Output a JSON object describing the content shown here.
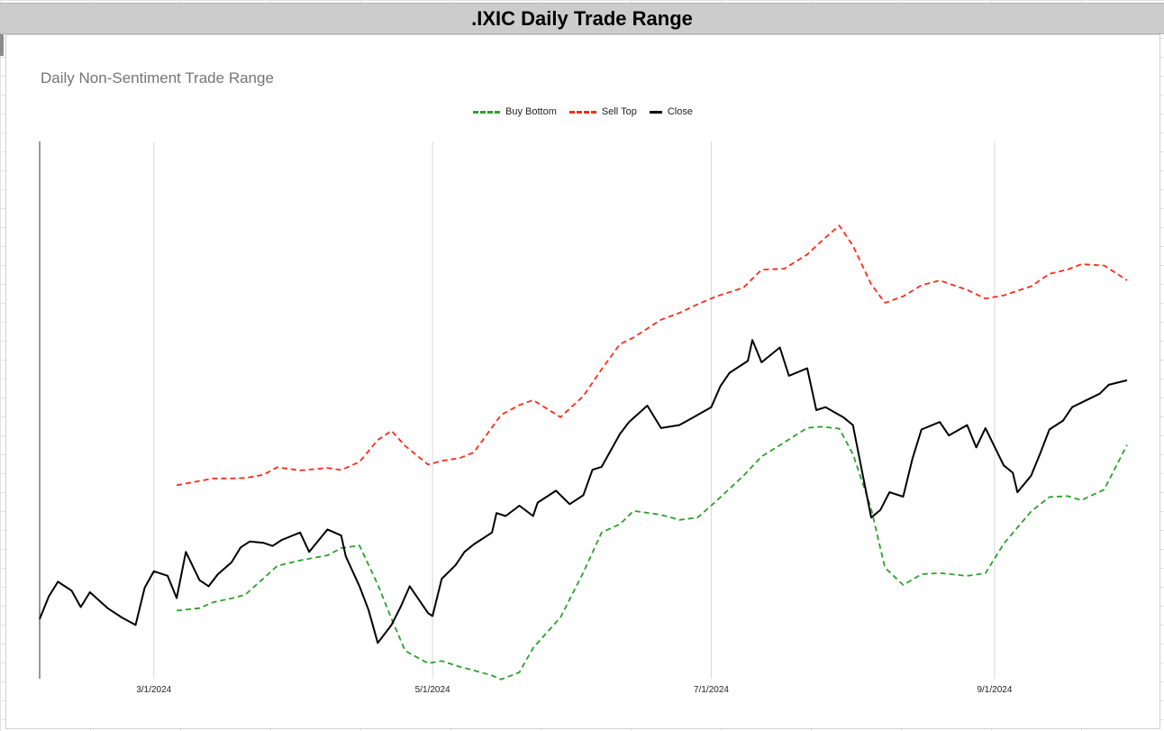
{
  "header": {
    "title": ".IXIC Daily Trade Range"
  },
  "colors": {
    "buy": "#2ca02c",
    "sell": "#ff2a1a",
    "close": "#000000"
  },
  "chart_data": {
    "type": "line",
    "title": "Daily Non-Sentiment Trade Range",
    "xlabel": "",
    "ylabel": "",
    "legend_position": "top-center",
    "grid": "vertical",
    "x_range": [
      "2024-02-05",
      "2024-09-30"
    ],
    "y_range": [
      15200,
      18800
    ],
    "x_ticks": [
      "3/1/2024",
      "5/1/2024",
      "7/1/2024",
      "9/1/2024"
    ],
    "x_tick_dates": [
      "2024-03-01",
      "2024-05-01",
      "2024-07-01",
      "2024-09-01"
    ],
    "series": [
      {
        "name": "Buy Bottom",
        "style": "dashed",
        "color": "#2ca02c",
        "points": [
          [
            "2024-03-06",
            15656
          ],
          [
            "2024-03-11",
            15673
          ],
          [
            "2024-03-14",
            15713
          ],
          [
            "2024-03-18",
            15738
          ],
          [
            "2024-03-21",
            15763
          ],
          [
            "2024-03-25",
            15872
          ],
          [
            "2024-03-28",
            15956
          ],
          [
            "2024-04-02",
            15993
          ],
          [
            "2024-04-08",
            16027
          ],
          [
            "2024-04-11",
            16075
          ],
          [
            "2024-04-15",
            16093
          ],
          [
            "2024-04-19",
            15831
          ],
          [
            "2024-04-22",
            15603
          ],
          [
            "2024-04-25",
            15387
          ],
          [
            "2024-04-30",
            15303
          ],
          [
            "2024-05-03",
            15319
          ],
          [
            "2024-05-07",
            15279
          ],
          [
            "2024-05-10",
            15256
          ],
          [
            "2024-05-14",
            15222
          ],
          [
            "2024-05-16",
            15195
          ],
          [
            "2024-05-20",
            15243
          ],
          [
            "2024-05-23",
            15406
          ],
          [
            "2024-05-29",
            15611
          ],
          [
            "2024-06-03",
            15912
          ],
          [
            "2024-06-07",
            16180
          ],
          [
            "2024-06-11",
            16236
          ],
          [
            "2024-06-14",
            16325
          ],
          [
            "2024-06-20",
            16299
          ],
          [
            "2024-06-24",
            16264
          ],
          [
            "2024-06-28",
            16280
          ],
          [
            "2024-07-02",
            16388
          ],
          [
            "2024-07-08",
            16559
          ],
          [
            "2024-07-12",
            16689
          ],
          [
            "2024-07-17",
            16784
          ],
          [
            "2024-07-22",
            16881
          ],
          [
            "2024-07-25",
            16889
          ],
          [
            "2024-07-29",
            16876
          ],
          [
            "2024-08-01",
            16706
          ],
          [
            "2024-08-05",
            16339
          ],
          [
            "2024-08-08",
            15945
          ],
          [
            "2024-08-12",
            15828
          ],
          [
            "2024-08-16",
            15900
          ],
          [
            "2024-08-20",
            15908
          ],
          [
            "2024-08-26",
            15889
          ],
          [
            "2024-08-30",
            15907
          ],
          [
            "2024-09-03",
            16104
          ],
          [
            "2024-09-09",
            16321
          ],
          [
            "2024-09-13",
            16418
          ],
          [
            "2024-09-17",
            16424
          ],
          [
            "2024-09-20",
            16396
          ],
          [
            "2024-09-25",
            16468
          ],
          [
            "2024-09-30",
            16766
          ]
        ]
      },
      {
        "name": "Sell Top",
        "style": "dashed",
        "color": "#ff2a1a",
        "points": [
          [
            "2024-03-06",
            16497
          ],
          [
            "2024-03-11",
            16525
          ],
          [
            "2024-03-14",
            16542
          ],
          [
            "2024-03-18",
            16542
          ],
          [
            "2024-03-21",
            16545
          ],
          [
            "2024-03-25",
            16567
          ],
          [
            "2024-03-28",
            16617
          ],
          [
            "2024-04-02",
            16596
          ],
          [
            "2024-04-08",
            16613
          ],
          [
            "2024-04-11",
            16599
          ],
          [
            "2024-04-15",
            16653
          ],
          [
            "2024-04-19",
            16799
          ],
          [
            "2024-04-22",
            16862
          ],
          [
            "2024-04-25",
            16760
          ],
          [
            "2024-04-30",
            16635
          ],
          [
            "2024-05-03",
            16660
          ],
          [
            "2024-05-07",
            16679
          ],
          [
            "2024-05-10",
            16716
          ],
          [
            "2024-05-14",
            16884
          ],
          [
            "2024-05-16",
            16968
          ],
          [
            "2024-05-20",
            17034
          ],
          [
            "2024-05-23",
            17067
          ],
          [
            "2024-05-29",
            16953
          ],
          [
            "2024-06-03",
            17094
          ],
          [
            "2024-06-07",
            17274
          ],
          [
            "2024-06-11",
            17442
          ],
          [
            "2024-06-14",
            17487
          ],
          [
            "2024-06-20",
            17606
          ],
          [
            "2024-06-24",
            17651
          ],
          [
            "2024-06-28",
            17709
          ],
          [
            "2024-07-02",
            17761
          ],
          [
            "2024-07-08",
            17820
          ],
          [
            "2024-07-12",
            17941
          ],
          [
            "2024-07-17",
            17948
          ],
          [
            "2024-07-22",
            18043
          ],
          [
            "2024-07-25",
            18129
          ],
          [
            "2024-07-29",
            18237
          ],
          [
            "2024-08-01",
            18102
          ],
          [
            "2024-08-05",
            17843
          ],
          [
            "2024-08-08",
            17719
          ],
          [
            "2024-08-12",
            17762
          ],
          [
            "2024-08-16",
            17837
          ],
          [
            "2024-08-20",
            17869
          ],
          [
            "2024-08-26",
            17805
          ],
          [
            "2024-08-30",
            17747
          ],
          [
            "2024-09-03",
            17769
          ],
          [
            "2024-09-09",
            17830
          ],
          [
            "2024-09-13",
            17913
          ],
          [
            "2024-09-17",
            17942
          ],
          [
            "2024-09-20",
            17978
          ],
          [
            "2024-09-25",
            17969
          ],
          [
            "2024-09-30",
            17870
          ]
        ]
      },
      {
        "name": "Close",
        "style": "solid",
        "color": "#000000",
        "points": [
          [
            "2024-02-05",
            15600
          ],
          [
            "2024-02-07",
            15750
          ],
          [
            "2024-02-09",
            15850
          ],
          [
            "2024-02-12",
            15790
          ],
          [
            "2024-02-14",
            15680
          ],
          [
            "2024-02-16",
            15780
          ],
          [
            "2024-02-20",
            15670
          ],
          [
            "2024-02-23",
            15610
          ],
          [
            "2024-02-26",
            15560
          ],
          [
            "2024-02-28",
            15810
          ],
          [
            "2024-03-01",
            15920
          ],
          [
            "2024-03-04",
            15890
          ],
          [
            "2024-03-06",
            15740
          ],
          [
            "2024-03-08",
            16050
          ],
          [
            "2024-03-11",
            15860
          ],
          [
            "2024-03-13",
            15820
          ],
          [
            "2024-03-15",
            15900
          ],
          [
            "2024-03-18",
            15980
          ],
          [
            "2024-03-20",
            16080
          ],
          [
            "2024-03-22",
            16120
          ],
          [
            "2024-03-25",
            16110
          ],
          [
            "2024-03-27",
            16090
          ],
          [
            "2024-03-29",
            16130
          ],
          [
            "2024-04-02",
            16180
          ],
          [
            "2024-04-04",
            16050
          ],
          [
            "2024-04-08",
            16200
          ],
          [
            "2024-04-11",
            16160
          ],
          [
            "2024-04-12",
            16020
          ],
          [
            "2024-04-15",
            15820
          ],
          [
            "2024-04-17",
            15660
          ],
          [
            "2024-04-19",
            15440
          ],
          [
            "2024-04-22",
            15560
          ],
          [
            "2024-04-24",
            15680
          ],
          [
            "2024-04-26",
            15820
          ],
          [
            "2024-04-30",
            15640
          ],
          [
            "2024-05-01",
            15620
          ],
          [
            "2024-05-03",
            15870
          ],
          [
            "2024-05-06",
            15960
          ],
          [
            "2024-05-08",
            16050
          ],
          [
            "2024-05-10",
            16100
          ],
          [
            "2024-05-14",
            16180
          ],
          [
            "2024-05-15",
            16310
          ],
          [
            "2024-05-17",
            16290
          ],
          [
            "2024-05-20",
            16360
          ],
          [
            "2024-05-23",
            16290
          ],
          [
            "2024-05-24",
            16380
          ],
          [
            "2024-05-28",
            16460
          ],
          [
            "2024-05-31",
            16370
          ],
          [
            "2024-06-03",
            16430
          ],
          [
            "2024-06-05",
            16600
          ],
          [
            "2024-06-07",
            16620
          ],
          [
            "2024-06-11",
            16840
          ],
          [
            "2024-06-13",
            16920
          ],
          [
            "2024-06-17",
            17030
          ],
          [
            "2024-06-20",
            16880
          ],
          [
            "2024-06-24",
            16900
          ],
          [
            "2024-06-27",
            16950
          ],
          [
            "2024-07-01",
            17020
          ],
          [
            "2024-07-03",
            17160
          ],
          [
            "2024-07-05",
            17250
          ],
          [
            "2024-07-09",
            17330
          ],
          [
            "2024-07-10",
            17470
          ],
          [
            "2024-07-12",
            17320
          ],
          [
            "2024-07-16",
            17420
          ],
          [
            "2024-07-18",
            17230
          ],
          [
            "2024-07-22",
            17280
          ],
          [
            "2024-07-24",
            17000
          ],
          [
            "2024-07-26",
            17020
          ],
          [
            "2024-07-30",
            16950
          ],
          [
            "2024-08-01",
            16900
          ],
          [
            "2024-08-05",
            16280
          ],
          [
            "2024-08-07",
            16330
          ],
          [
            "2024-08-09",
            16450
          ],
          [
            "2024-08-12",
            16420
          ],
          [
            "2024-08-14",
            16670
          ],
          [
            "2024-08-16",
            16870
          ],
          [
            "2024-08-20",
            16920
          ],
          [
            "2024-08-22",
            16830
          ],
          [
            "2024-08-26",
            16900
          ],
          [
            "2024-08-28",
            16750
          ],
          [
            "2024-08-30",
            16880
          ],
          [
            "2024-09-03",
            16630
          ],
          [
            "2024-09-05",
            16580
          ],
          [
            "2024-09-06",
            16450
          ],
          [
            "2024-09-09",
            16560
          ],
          [
            "2024-09-11",
            16710
          ],
          [
            "2024-09-13",
            16870
          ],
          [
            "2024-09-16",
            16930
          ],
          [
            "2024-09-18",
            17020
          ],
          [
            "2024-09-20",
            17050
          ],
          [
            "2024-09-24",
            17110
          ],
          [
            "2024-09-26",
            17170
          ],
          [
            "2024-09-30",
            17200
          ]
        ]
      }
    ]
  }
}
